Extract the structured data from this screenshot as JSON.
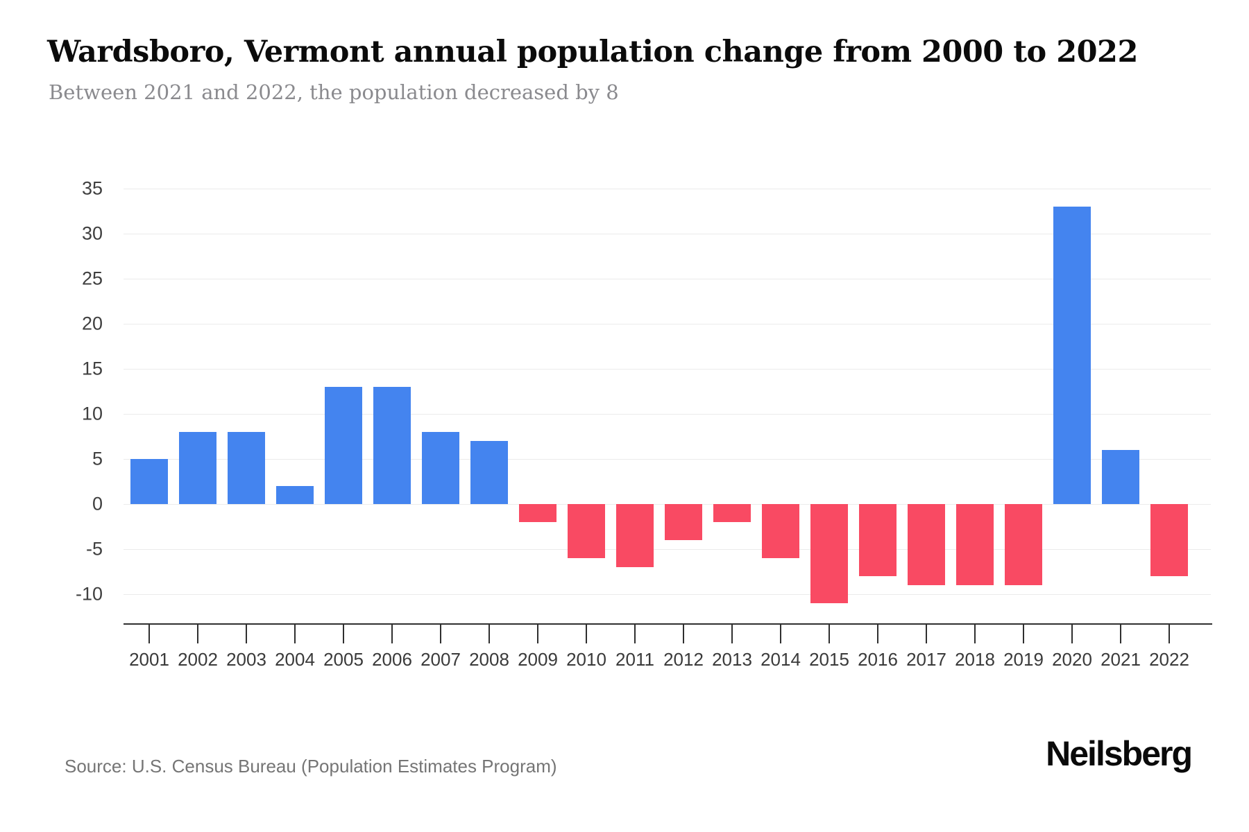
{
  "title": "Wardsboro, Vermont annual population change from 2000 to 2022",
  "subtitle": "Between 2021 and 2022, the population decreased by 8",
  "source": "Source: U.S. Census Bureau (Population Estimates Program)",
  "logo": "Neilsberg",
  "chart_data": {
    "type": "bar",
    "title": "Wardsboro, Vermont annual population change from 2000 to 2022",
    "xlabel": "",
    "ylabel": "",
    "categories": [
      "2001",
      "2002",
      "2003",
      "2004",
      "2005",
      "2006",
      "2007",
      "2008",
      "2009",
      "2010",
      "2011",
      "2012",
      "2013",
      "2014",
      "2015",
      "2016",
      "2017",
      "2018",
      "2019",
      "2020",
      "2021",
      "2022"
    ],
    "values": [
      5,
      8,
      8,
      2,
      13,
      13,
      8,
      7,
      -2,
      -6,
      -7,
      -4,
      -2,
      -6,
      -11,
      -8,
      -9,
      -9,
      -9,
      33,
      6,
      -8
    ],
    "yticks": [
      35,
      30,
      25,
      20,
      15,
      10,
      5,
      0,
      -5,
      -10
    ],
    "ylim": [
      -12,
      36
    ],
    "grid": true,
    "legend_position": "none",
    "positive_color": "#4484EF",
    "negative_color": "#F94A63",
    "gridline_color": "#EBEBEB",
    "axis_color": "#2f2f2f",
    "tick_label_color": "#3a3a3a"
  }
}
